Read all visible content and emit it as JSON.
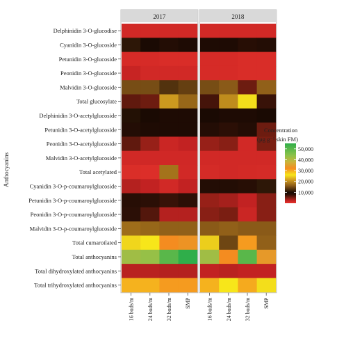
{
  "chart_data": {
    "type": "heatmap",
    "panels": [
      "2017",
      "2018"
    ],
    "rows": [
      "Delphinidin 3-O-glucodise",
      "Cyanidin 3-O-glucoside",
      "Petunidin 3-O-glucoside",
      "Peonidin 3-O-glucoside",
      "Malvidin 3-O-glucoside",
      "Total glucosylate",
      "Delphinidin 3-O-acetylglucoside",
      "Petunidin 3-O-acetylglucoside",
      "Peonidin 3-O-acetylglucoside",
      "Malvidin 3-O-acetylglucoside",
      "Total acetylated",
      "Cyanidin 3-O-p-coumaroylglucoside",
      "Petunidin 3-O-p-coumaroylglucoside",
      "Peonidin 3-O-p-coumaroylglucoside",
      "Malvidin 3-O-p-coumaroylglucoside",
      "Total cumaroilated",
      "Total anthocyanins",
      "Total dihydroxylated anthocyanins",
      "Total trihydroxylated anthocyanins"
    ],
    "columns": [
      "16 buds/m",
      "24 buds/m",
      "32 buds/m",
      "SMP"
    ],
    "ylabel": "Anthocyanins",
    "legend": {
      "title_line1": "Concentration",
      "title_line2": "(µg g⁻¹ skin FM)",
      "ticks": [
        {
          "value": 50000,
          "label": "50,000"
        },
        {
          "value": 40000,
          "label": "40,000"
        },
        {
          "value": 30000,
          "label": "30,000"
        },
        {
          "value": 20000,
          "label": "20,000"
        },
        {
          "value": 10000,
          "label": "10,000"
        }
      ],
      "range": [
        0,
        55000
      ]
    },
    "palette_stops": [
      {
        "value": 0,
        "color": "#e8342c"
      },
      {
        "value": 2500,
        "color": "#c22222"
      },
      {
        "value": 5000,
        "color": "#7a1e12"
      },
      {
        "value": 8000,
        "color": "#2b0f06"
      },
      {
        "value": 10000,
        "color": "#1a0a03"
      },
      {
        "value": 16000,
        "color": "#8a5a18"
      },
      {
        "value": 22000,
        "color": "#d9a520"
      },
      {
        "value": 26000,
        "color": "#f7e61a"
      },
      {
        "value": 32000,
        "color": "#f48c20"
      },
      {
        "value": 38000,
        "color": "#c9b43a"
      },
      {
        "value": 44000,
        "color": "#8cc24a"
      },
      {
        "value": 55000,
        "color": "#2fae4a"
      }
    ],
    "values": {
      "2017": [
        [
          1500,
          1500,
          1500,
          1500
        ],
        [
          11000,
          10000,
          9000,
          9500
        ],
        [
          1200,
          1200,
          1000,
          1000
        ],
        [
          2200,
          1500,
          1500,
          1500
        ],
        [
          15000,
          15000,
          13000,
          14000
        ],
        [
          6000,
          5500,
          21000,
          17000
        ],
        [
          10500,
          10000,
          9500,
          9500
        ],
        [
          9000,
          9500,
          9500,
          9500
        ],
        [
          6000,
          4000,
          2000,
          2500
        ],
        [
          1500,
          1600,
          1600,
          1600
        ],
        [
          900,
          800,
          18000,
          1500
        ],
        [
          3000,
          2500,
          1500,
          2500
        ],
        [
          8500,
          8000,
          7500,
          8000
        ],
        [
          8000,
          6500,
          3000,
          3000
        ],
        [
          17500,
          17000,
          16500,
          16500
        ],
        [
          25000,
          26000,
          32000,
          33000
        ],
        [
          42000,
          43000,
          50000,
          55000
        ],
        [
          2800,
          2800,
          3000,
          3000
        ],
        [
          29500,
          29500,
          31000,
          31000
        ]
      ],
      "2018": [
        [
          1500,
          1500,
          1500,
          1500
        ],
        [
          9500,
          9500,
          8500,
          9000
        ],
        [
          1200,
          1200,
          1000,
          1000
        ],
        [
          1200,
          1200,
          1000,
          1000
        ],
        [
          15000,
          16000,
          5500,
          16500
        ],
        [
          7000,
          20000,
          25500,
          7500
        ],
        [
          10000,
          9500,
          9500,
          10000
        ],
        [
          9000,
          8000,
          9000,
          5500
        ],
        [
          4000,
          4500,
          1500,
          5000
        ],
        [
          1500,
          1500,
          1500,
          1500
        ],
        [
          1300,
          1500,
          1400,
          1300
        ],
        [
          9000,
          9000,
          8500,
          11000
        ],
        [
          4000,
          3500,
          2500,
          4500
        ],
        [
          4500,
          5000,
          2000,
          4500
        ],
        [
          16000,
          16500,
          16000,
          16000
        ],
        [
          24500,
          14500,
          31000,
          16500
        ],
        [
          42000,
          32000,
          50000,
          34000
        ],
        [
          2500,
          2800,
          2500,
          2500
        ],
        [
          29500,
          26000,
          30000,
          25500
        ]
      ]
    }
  }
}
